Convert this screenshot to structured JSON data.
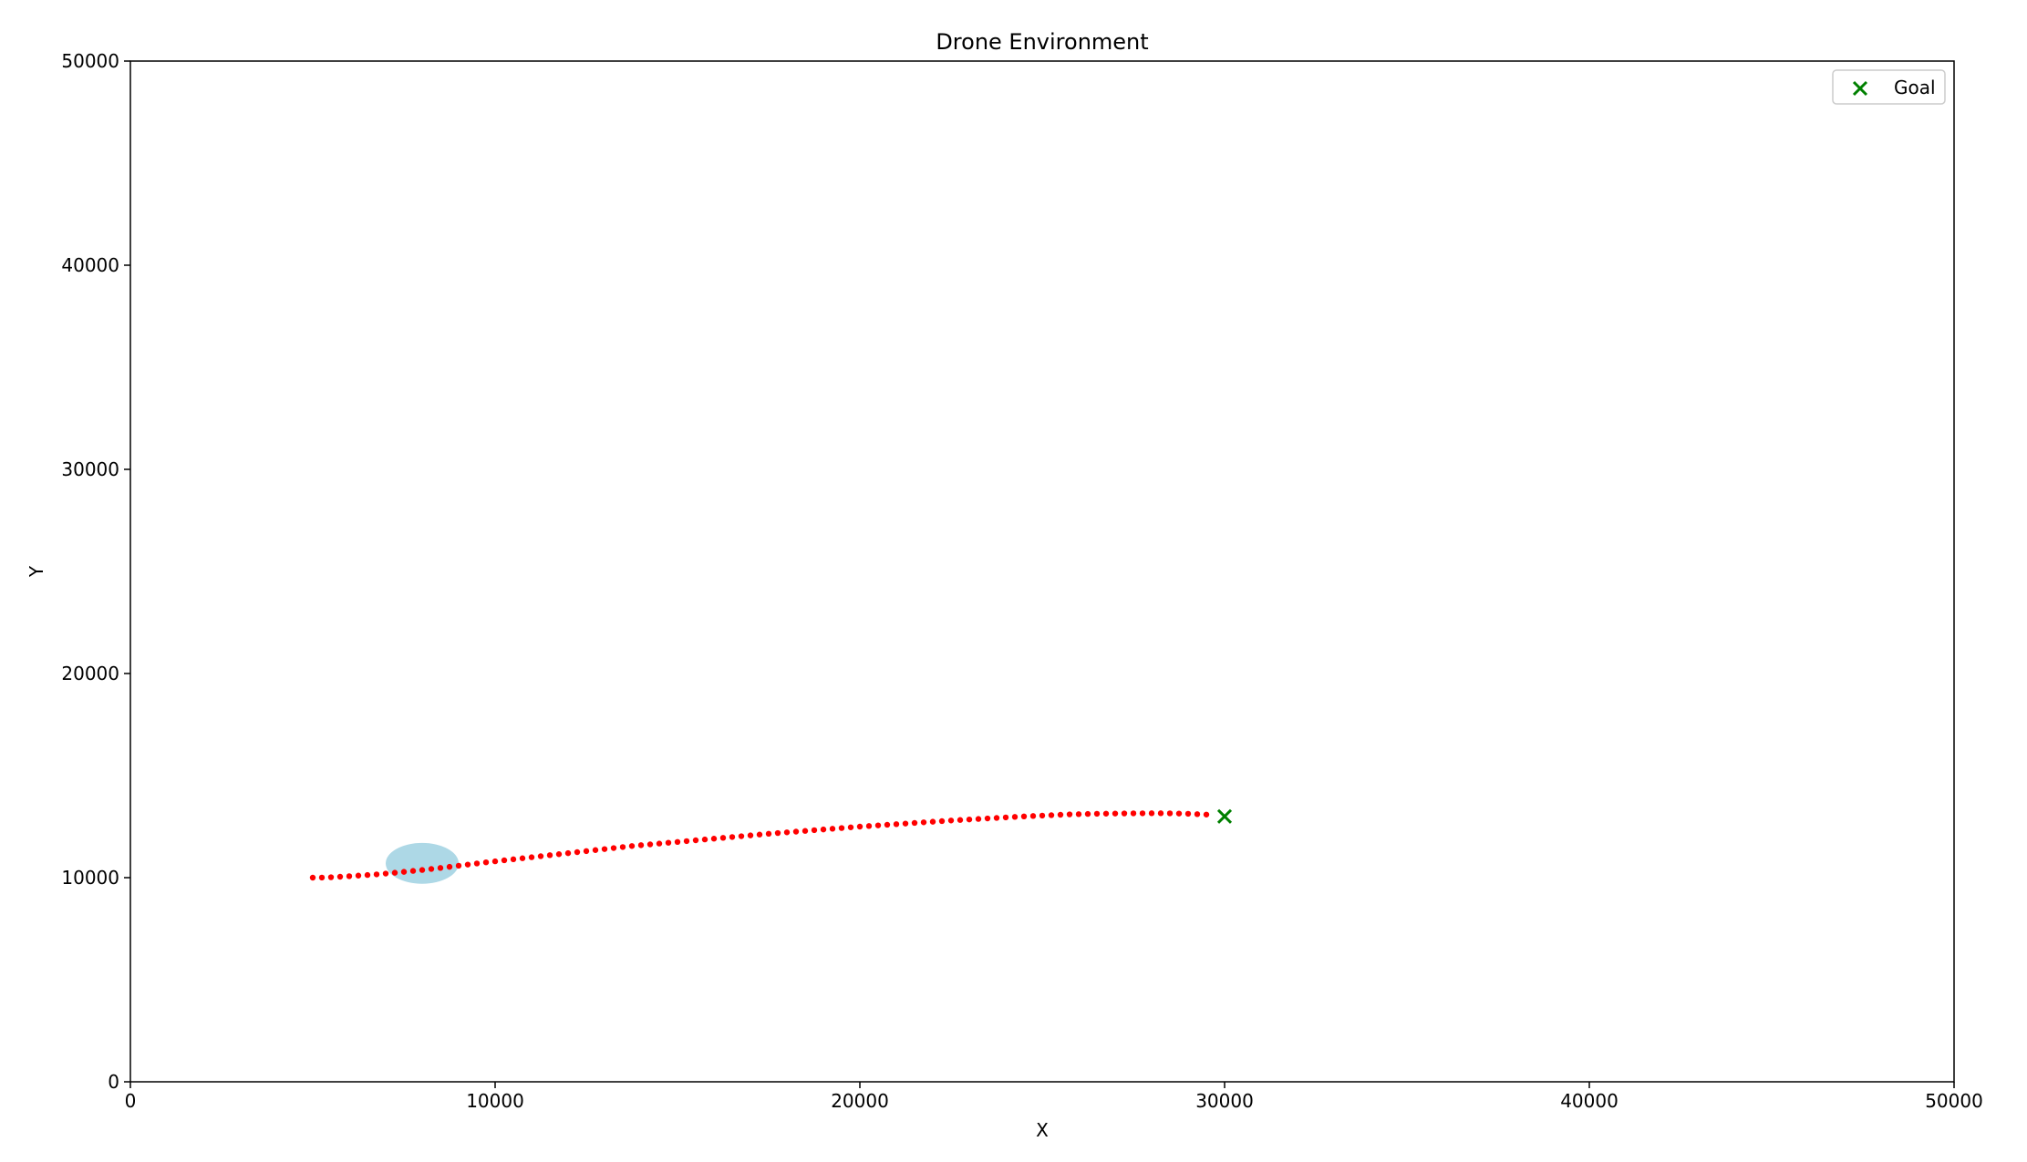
{
  "chart_data": {
    "type": "scatter",
    "title": "Drone Environment",
    "xlabel": "X",
    "ylabel": "Y",
    "xlim": [
      0,
      50000
    ],
    "ylim": [
      0,
      50000
    ],
    "xticks": [
      0,
      10000,
      20000,
      30000,
      40000,
      50000
    ],
    "yticks": [
      0,
      10000,
      20000,
      30000,
      40000,
      50000
    ],
    "xtick_labels": [
      "0",
      "10000",
      "20000",
      "30000",
      "40000",
      "50000"
    ],
    "ytick_labels": [
      "0",
      "10000",
      "20000",
      "30000",
      "40000",
      "50000"
    ],
    "grid": false,
    "legend": {
      "position": "top-right",
      "entries": [
        {
          "label": "Goal",
          "marker": "x",
          "color": "#008000"
        }
      ]
    },
    "goal": {
      "x": 30000,
      "y": 13000,
      "color": "#008000",
      "marker": "x"
    },
    "obstacle": {
      "x": 8000,
      "y": 10700,
      "rx": 500,
      "ry": 500,
      "color": "#add8e6"
    },
    "trajectory": {
      "color": "#ff0000",
      "x": [
        5000,
        5250,
        5500,
        5750,
        6000,
        6250,
        6500,
        6750,
        7000,
        7250,
        7500,
        7750,
        8000,
        8250,
        8500,
        8750,
        9000,
        9250,
        9500,
        9750,
        10000,
        10250,
        10500,
        10750,
        11000,
        11250,
        11500,
        11750,
        12000,
        12250,
        12500,
        12750,
        13000,
        13250,
        13500,
        13750,
        14000,
        14250,
        14500,
        14750,
        15000,
        15250,
        15500,
        15750,
        16000,
        16250,
        16500,
        16750,
        17000,
        17250,
        17500,
        17750,
        18000,
        18250,
        18500,
        18750,
        19000,
        19250,
        19500,
        19750,
        20000,
        20250,
        20500,
        20750,
        21000,
        21250,
        21500,
        21750,
        22000,
        22250,
        22500,
        22750,
        23000,
        23250,
        23500,
        23750,
        24000,
        24250,
        24500,
        24750,
        25000,
        25250,
        25500,
        25750,
        26000,
        26250,
        26500,
        26750,
        27000,
        27250,
        27500,
        27750,
        28000,
        28250,
        28500,
        28750,
        29000,
        29250,
        29500
      ],
      "y": [
        10000,
        10005,
        10020,
        10045,
        10070,
        10100,
        10130,
        10160,
        10200,
        10240,
        10285,
        10330,
        10375,
        10425,
        10475,
        10530,
        10585,
        10640,
        10695,
        10750,
        10800,
        10850,
        10900,
        10950,
        11000,
        11050,
        11100,
        11150,
        11200,
        11250,
        11300,
        11350,
        11400,
        11450,
        11500,
        11550,
        11590,
        11630,
        11670,
        11710,
        11750,
        11790,
        11830,
        11870,
        11910,
        11950,
        11990,
        12030,
        12070,
        12110,
        12150,
        12185,
        12220,
        12255,
        12290,
        12325,
        12360,
        12395,
        12430,
        12465,
        12500,
        12530,
        12560,
        12590,
        12620,
        12650,
        12680,
        12710,
        12740,
        12770,
        12800,
        12825,
        12850,
        12875,
        12900,
        12925,
        12950,
        12975,
        13000,
        13020,
        13040,
        13060,
        13080,
        13100,
        13110,
        13120,
        13130,
        13135,
        13140,
        13145,
        13150,
        13152,
        13155,
        13155,
        13150,
        13140,
        13130,
        13110,
        13090
      ]
    }
  }
}
